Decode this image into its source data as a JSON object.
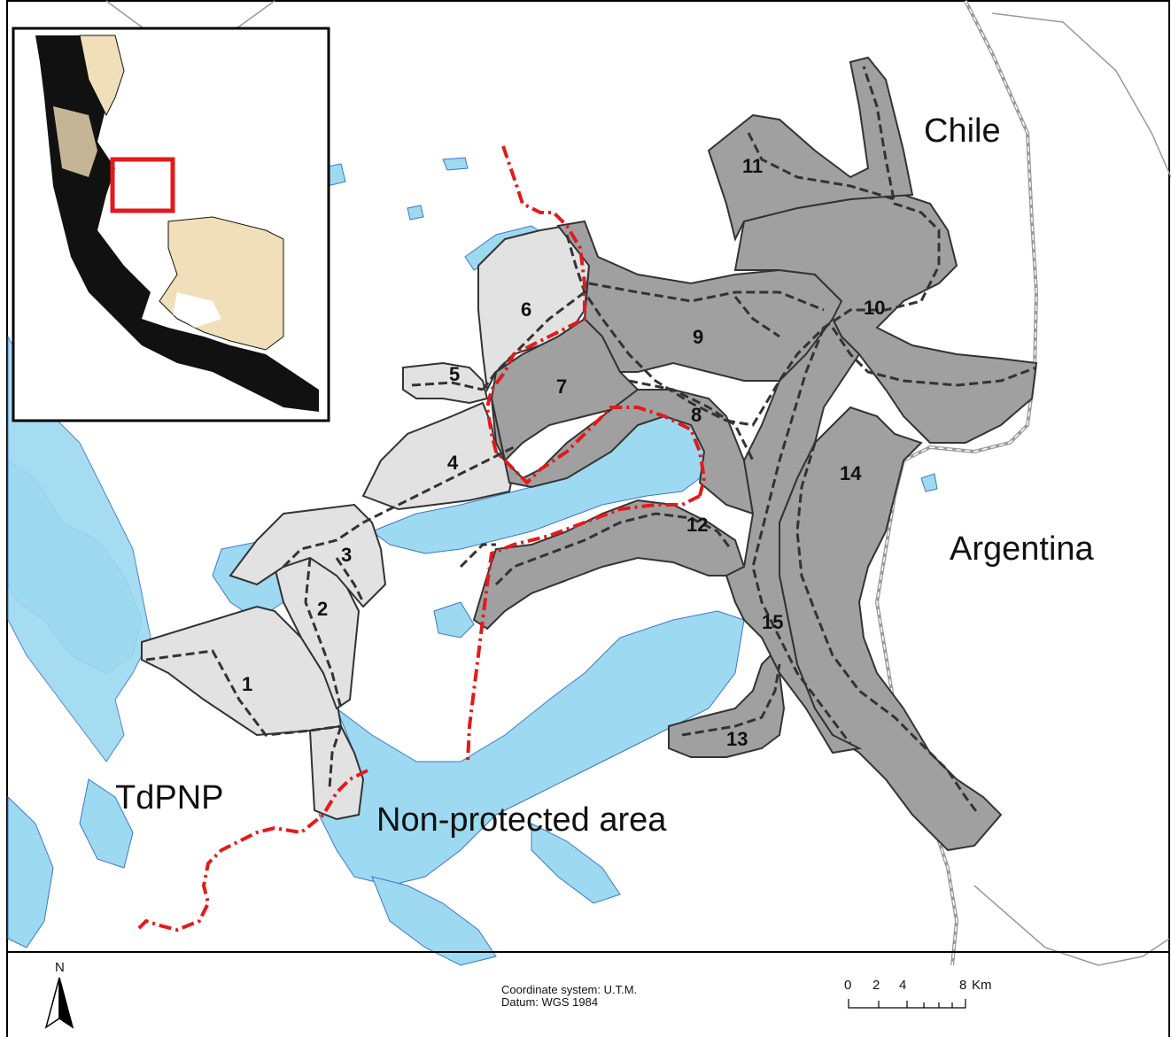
{
  "zones": [
    {
      "id": "1"
    },
    {
      "id": "2"
    },
    {
      "id": "3"
    },
    {
      "id": "4"
    },
    {
      "id": "5"
    },
    {
      "id": "6"
    },
    {
      "id": "7"
    },
    {
      "id": "8"
    },
    {
      "id": "9"
    },
    {
      "id": "10"
    },
    {
      "id": "11"
    },
    {
      "id": "12"
    },
    {
      "id": "13"
    },
    {
      "id": "14"
    },
    {
      "id": "15"
    }
  ],
  "region_labels": {
    "chile": "Chile",
    "argentina": "Argentina",
    "tdpnp": "TdPNP",
    "non_protected": "Non-protected area"
  },
  "footer": {
    "north": "N",
    "coordinate_system": "Coordinate system: U.T.M.",
    "datum": "Datum: WGS 1984",
    "scale_ticks": [
      "0",
      "2",
      "4",
      "8"
    ],
    "scale_unit": "Km"
  },
  "colors": {
    "water": "#9dd9f0",
    "protected_zone": "#e2e2e2",
    "non_protected_zone": "#a0a0a0",
    "park_boundary": "#e31a1c",
    "inset_land": "#f0dfb8"
  }
}
